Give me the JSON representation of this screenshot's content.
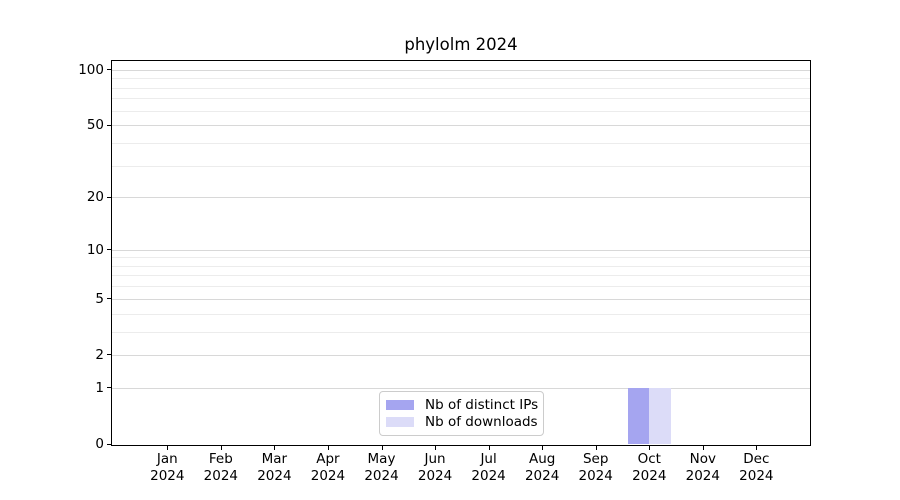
{
  "chart_data": {
    "type": "bar",
    "title": "phylolm 2024",
    "categories": [
      "Jan",
      "Feb",
      "Mar",
      "Apr",
      "May",
      "Jun",
      "Jul",
      "Aug",
      "Sep",
      "Oct",
      "Nov",
      "Dec"
    ],
    "tick_year": "2024",
    "series": [
      {
        "name": "Nb of distinct IPs",
        "color": "#a5a5f0",
        "values": [
          0,
          0,
          0,
          0,
          0,
          0,
          0,
          0,
          0,
          1,
          0,
          0
        ]
      },
      {
        "name": "Nb of downloads",
        "color": "#dcdcf8",
        "values": [
          0,
          0,
          0,
          0,
          0,
          0,
          0,
          0,
          0,
          1,
          0,
          0
        ]
      }
    ],
    "xlabel": "",
    "ylabel": "",
    "yscale": "log1p",
    "yticks_major": [
      0,
      1,
      2,
      5,
      10,
      20,
      50,
      100
    ],
    "yticks_minor": [
      3,
      4,
      6,
      7,
      8,
      9,
      30,
      40,
      60,
      70,
      80,
      90
    ],
    "ylim": [
      0,
      112.4
    ],
    "grid": "horizontal",
    "legend": {
      "position": "lower center",
      "entries": [
        "Nb of distinct IPs",
        "Nb of downloads"
      ]
    }
  },
  "colors": {
    "background": "#ffffff",
    "axis": "#000000",
    "text": "#000000",
    "major_grid": "#d8d8d8",
    "minor_grid": "#ececec",
    "legend_border": "#cccccc"
  }
}
